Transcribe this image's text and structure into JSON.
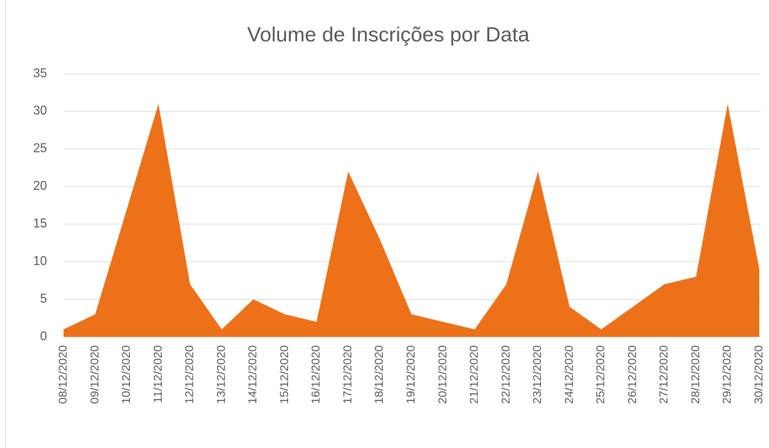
{
  "chart_data": {
    "type": "area",
    "title": "Volume de Inscrições por Data",
    "categories": [
      "08/12/2020",
      "09/12/2020",
      "10/12/2020",
      "11/12/2020",
      "12/12/2020",
      "13/12/2020",
      "14/12/2020",
      "15/12/2020",
      "16/12/2020",
      "17/12/2020",
      "18/12/2020",
      "19/12/2020",
      "20/12/2020",
      "21/12/2020",
      "22/12/2020",
      "23/12/2020",
      "24/12/2020",
      "25/12/2020",
      "26/12/2020",
      "27/12/2020",
      "28/12/2020",
      "29/12/2020",
      "30/12/2020"
    ],
    "values": [
      1,
      3,
      17,
      31,
      7,
      1,
      5,
      3,
      2,
      22,
      13,
      3,
      2,
      1,
      7,
      22,
      4,
      1,
      4,
      7,
      8,
      31,
      9
    ],
    "color": "#ed7119",
    "ylim": [
      0,
      35
    ],
    "yticks": [
      0,
      5,
      10,
      15,
      20,
      25,
      30,
      35
    ],
    "grid": true
  }
}
